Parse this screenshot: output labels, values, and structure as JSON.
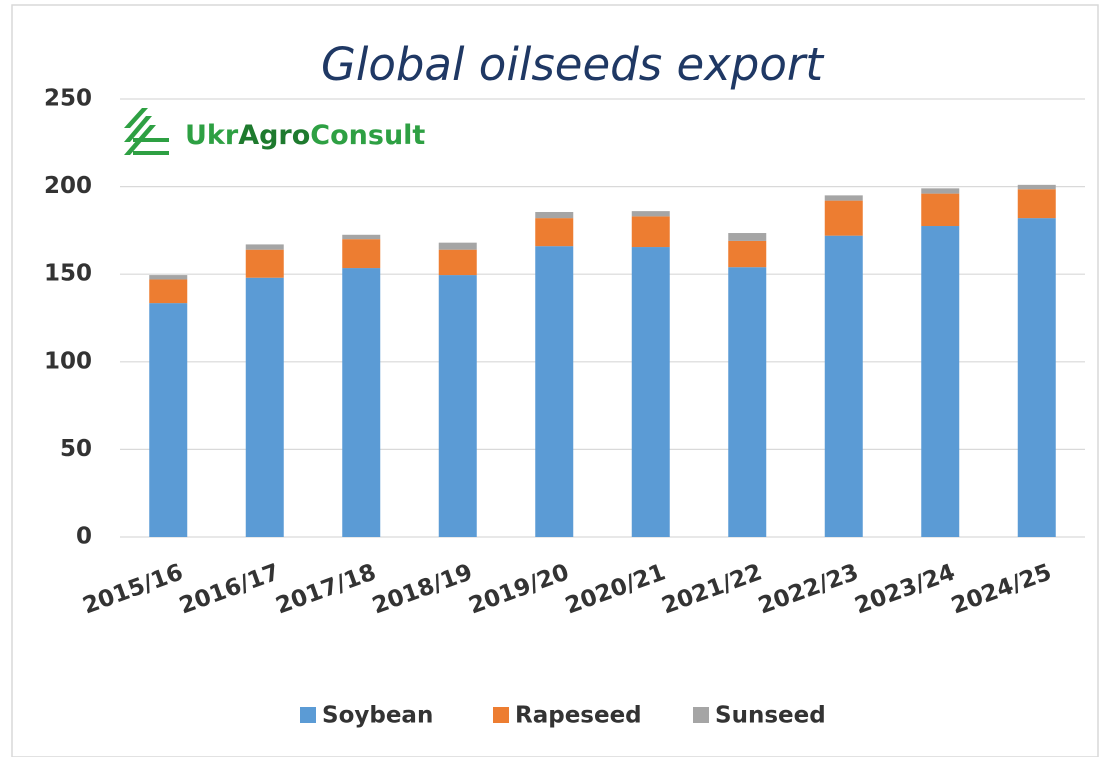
{
  "logo": [
    "Ukr",
    "Agro",
    "Consult"
  ],
  "chart_data": {
    "type": "stacked-bar",
    "title": "Global oilseeds export",
    "categories": [
      "2015/16",
      "2016/17",
      "2017/18",
      "2018/19",
      "2019/20",
      "2020/21",
      "2021/22",
      "2022/23",
      "2023/24",
      "2024/25"
    ],
    "series": [
      {
        "name": "Soybean",
        "color": "#5b9bd5",
        "values": [
          133.5,
          148,
          153.5,
          149.5,
          166,
          165.5,
          154,
          172,
          177.5,
          182
        ]
      },
      {
        "name": "Rapeseed",
        "color": "#ed7d31",
        "values": [
          13.5,
          16,
          16.5,
          14.5,
          16,
          17.5,
          15,
          20,
          18.5,
          16.5
        ]
      },
      {
        "name": "Sunseed",
        "color": "#a5a5a5",
        "values": [
          2.5,
          3,
          2.5,
          4,
          3.5,
          3,
          4.5,
          3,
          3,
          2.5
        ]
      }
    ],
    "ylim": [
      0,
      250
    ],
    "yticks": [
      0,
      50,
      100,
      150,
      200,
      250
    ],
    "grid": true,
    "legend": "bottom"
  }
}
